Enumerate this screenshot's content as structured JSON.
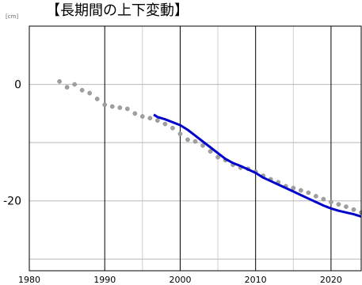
{
  "title": "【長期間の上下変動】",
  "unit_label": "[cm]",
  "chart_data": {
    "type": "line",
    "title": "【長期間の上下変動】",
    "xlabel": "",
    "ylabel": "",
    "y_unit": "[cm]",
    "xlim": [
      1980,
      2024
    ],
    "ylim": [
      -32,
      10
    ],
    "x_ticks": [
      1980,
      1990,
      2000,
      2010,
      2020
    ],
    "x_tick_labels": [
      "1980",
      "1990",
      "2000",
      "2010",
      "2020"
    ],
    "y_ticks": [
      0,
      -20
    ],
    "y_tick_labels": [
      "0",
      "-20"
    ],
    "major_x_grid": [
      1990,
      2000,
      2010,
      2020
    ],
    "minor_x_grid": [
      1995,
      2005,
      2015
    ],
    "y_grid": [
      10,
      0,
      -10,
      -20,
      -30
    ],
    "grid": true,
    "series": [
      {
        "style": "points",
        "color": "#a0a0a0",
        "x": [
          1984,
          1985,
          1986,
          1987,
          1988,
          1989,
          1990,
          1991,
          1992,
          1993,
          1994,
          1995,
          1996,
          1997,
          1998,
          1999,
          2000,
          2001,
          2002,
          2003,
          2004,
          2005,
          2006,
          2007,
          2008,
          2009,
          2010,
          2011,
          2012,
          2013,
          2014,
          2015,
          2016,
          2017,
          2018,
          2019,
          2020,
          2021,
          2022,
          2023,
          2024
        ],
        "y": [
          0.5,
          -0.5,
          0,
          -1,
          -1.5,
          -2.5,
          -3.5,
          -3.8,
          -4,
          -4.2,
          -5,
          -5.5,
          -5.8,
          -6.2,
          -6.8,
          -7.5,
          -8.5,
          -9.5,
          -9.8,
          -10.5,
          -11.5,
          -12.5,
          -13,
          -13.8,
          -14.3,
          -14.5,
          -15,
          -15.7,
          -16.3,
          -16.8,
          -17.5,
          -17.8,
          -18.2,
          -18.6,
          -19.2,
          -19.7,
          -20.2,
          -20.6,
          -21,
          -21.5,
          -22
        ]
      },
      {
        "style": "line",
        "color": "#0000cc",
        "x": [
          1996.5,
          1997,
          1998,
          1999,
          2000,
          2001,
          2002,
          2003,
          2004,
          2005,
          2006,
          2007,
          2008,
          2009,
          2010,
          2011,
          2012,
          2013,
          2014,
          2015,
          2016,
          2017,
          2018,
          2019,
          2020,
          2021,
          2022,
          2023,
          2024
        ],
        "y": [
          -5.2,
          -5.6,
          -6,
          -6.5,
          -7,
          -7.8,
          -8.8,
          -9.8,
          -10.8,
          -11.8,
          -12.8,
          -13.5,
          -14,
          -14.6,
          -15.2,
          -16,
          -16.6,
          -17.2,
          -17.8,
          -18.4,
          -19,
          -19.6,
          -20.2,
          -20.8,
          -21.3,
          -21.7,
          -22,
          -22.3,
          -22.7
        ]
      }
    ]
  }
}
